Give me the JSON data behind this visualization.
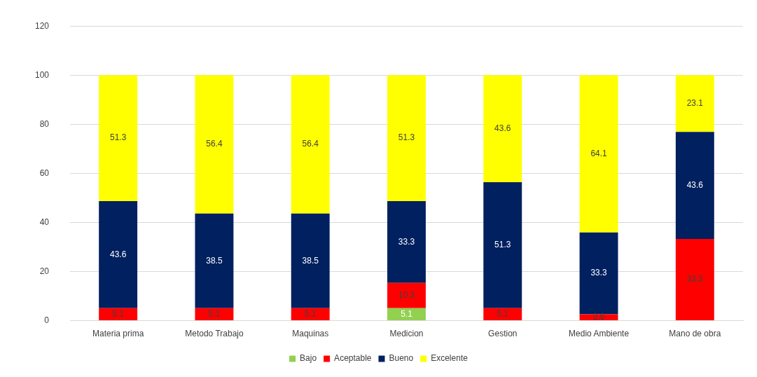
{
  "chart_data": {
    "type": "bar",
    "stacked": true,
    "categories": [
      "Materia prima",
      "Metodo Trabajo",
      "Maquinas",
      "Medicion",
      "Gestion",
      "Medio Ambiente",
      "Mano de obra"
    ],
    "series": [
      {
        "name": "Bajo",
        "color": "#92d050",
        "values": [
          null,
          null,
          null,
          5.1,
          null,
          null,
          null
        ]
      },
      {
        "name": "Aceptable",
        "color": "#ff0000",
        "values": [
          5.1,
          5.1,
          5.1,
          10.3,
          5.1,
          2.6,
          33.3
        ]
      },
      {
        "name": "Bueno",
        "color": "#002060",
        "values": [
          43.6,
          38.5,
          38.5,
          33.3,
          51.3,
          33.3,
          43.6
        ]
      },
      {
        "name": "Excelente",
        "color": "#ffff00",
        "values": [
          51.3,
          56.4,
          56.4,
          51.3,
          43.6,
          64.1,
          23.1
        ]
      }
    ],
    "ylim": [
      0,
      120
    ],
    "yticks": [
      0,
      20,
      40,
      60,
      80,
      100,
      120
    ],
    "grid": "y",
    "legend": "bottom",
    "data_labels": true
  }
}
